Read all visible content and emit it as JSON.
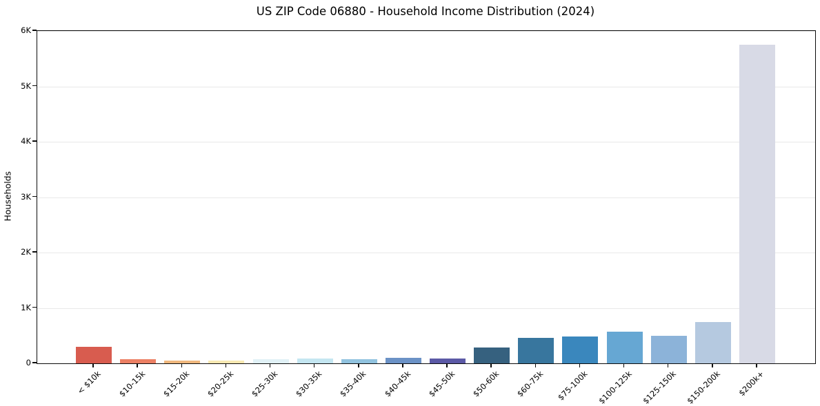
{
  "figure": {
    "background_color": "#ffffff",
    "axis_color": "#0a0a0a",
    "grid_color": "#e8e8e8",
    "text_color": "#000000"
  },
  "chart_data": {
    "type": "bar",
    "title": "US ZIP Code 06880 - Household Income Distribution (2024)",
    "xlabel": "",
    "ylabel": "Households",
    "categories": [
      "< $10k",
      "$10-15k",
      "$15-20k",
      "$20-25k",
      "$25-30k",
      "$30-35k",
      "$35-40k",
      "$40-45k",
      "$45-50k",
      "$50-60k",
      "$60-75k",
      "$75-100k",
      "$100-125k",
      "$125-150k",
      "$150-200k",
      "$200k+"
    ],
    "values": [
      300,
      75,
      55,
      50,
      80,
      90,
      75,
      100,
      90,
      290,
      460,
      480,
      570,
      500,
      740,
      5750
    ],
    "bar_colors": [
      "#d85c4f",
      "#ec8064",
      "#f0b87e",
      "#f8e9b2",
      "#e1f1f6",
      "#c4e6f1",
      "#91c3df",
      "#6b92c6",
      "#5b59a6",
      "#36617f",
      "#38769e",
      "#3a87bd",
      "#66a7d3",
      "#8cb3d9",
      "#b5c9e0",
      "#d8dae6"
    ],
    "ylim": [
      0,
      6000
    ],
    "yticks": [
      {
        "value": 0,
        "label": "0"
      },
      {
        "value": 1000,
        "label": "1K"
      },
      {
        "value": 2000,
        "label": "2K"
      },
      {
        "value": 3000,
        "label": "3K"
      },
      {
        "value": 4000,
        "label": "4K"
      },
      {
        "value": 5000,
        "label": "5K"
      },
      {
        "value": 6000,
        "label": "6K"
      }
    ],
    "grid": "horizontal",
    "legend": "none",
    "x_tick_rotation_deg": 45
  }
}
